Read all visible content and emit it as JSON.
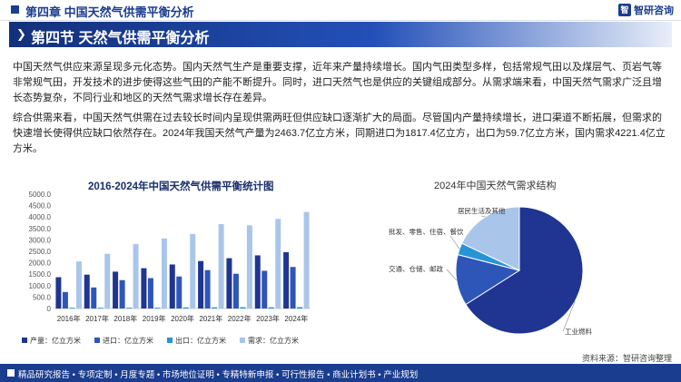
{
  "header": {
    "chapter": "第四章 中国天然气供需平衡分析",
    "logo_text": "智研咨询",
    "logo_mark": "智"
  },
  "banner": {
    "title": "第四节 天然气供需平衡分析"
  },
  "paragraphs": [
    "中国天然气供应来源呈现多元化态势。国内天然气生产是重要支撑，近年来产量持续增长。国内气田类型多样，包括常规气田以及煤层气、页岩气等非常规气田，开发技术的进步使得这些气田的产能不断提升。同时，进口天然气也是供应的关键组成部分。从需求端来看，中国天然气需求广泛且增长态势复杂，不同行业和地区的天然气需求增长存在差异。",
    "综合供需来看，中国天然气供需在过去较长时间内呈现供需两旺但供应缺口逐渐扩大的局面。尽管国内产量持续增长，进口渠道不断拓展，但需求的快速增长使得供应缺口依然存在。2024年我国天然气产量为2463.7亿立方米，同期进口为1817.4亿立方，出口为59.7亿立方米，国内需求4221.4亿立方米。"
  ],
  "source": "资料来源：智研咨询整理",
  "footer_links": "精品研究报告 • 专项定制 • 月度专题 • 市场地位证明 • 专精特新申报 • 可行性报告 • 商业计划书 • 产业规划",
  "chart_data": [
    {
      "type": "bar",
      "title": "2016-2024年中国天然气供需平衡统计图",
      "categories": [
        "2016年",
        "2017年",
        "2018年",
        "2019年",
        "2020年",
        "2021年",
        "2022年",
        "2023年",
        "2024年"
      ],
      "ylim": [
        0,
        5000
      ],
      "yticks": [
        "0",
        "500.0",
        "1000.0",
        "1500.0",
        "2000.0",
        "2500.0",
        "3000.0",
        "3500.0",
        "4000.0",
        "4500.0",
        "5000.0"
      ],
      "series": [
        {
          "name": "产量：亿立方米",
          "color": "#1f3591",
          "values": [
            1369,
            1480,
            1610,
            1762,
            1925,
            2076,
            2201,
            2324,
            2464
          ]
        },
        {
          "name": "进口：亿立方米",
          "color": "#2e56b9",
          "values": [
            720,
            920,
            1240,
            1330,
            1400,
            1680,
            1520,
            1650,
            1817
          ]
        },
        {
          "name": "出口：亿立方米",
          "color": "#2894d6",
          "values": [
            34,
            35,
            34,
            36,
            50,
            53,
            58,
            55,
            60
          ]
        },
        {
          "name": "需求：亿立方米",
          "color": "#a9c6ea",
          "values": [
            2058,
            2394,
            2817,
            3064,
            3262,
            3690,
            3638,
            3917,
            4221
          ]
        }
      ],
      "legend": "bottom"
    },
    {
      "type": "pie",
      "title": "2024年中国天然气需求结构",
      "labels": [
        "工业燃料",
        "交通、仓储、邮政",
        "批发、零售、住宿、餐饮",
        "居民生活及其他"
      ],
      "values": [
        66,
        13,
        3,
        18
      ],
      "colors": [
        "#1f3591",
        "#2e56b9",
        "#2894d6",
        "#a9c6ea"
      ]
    }
  ]
}
